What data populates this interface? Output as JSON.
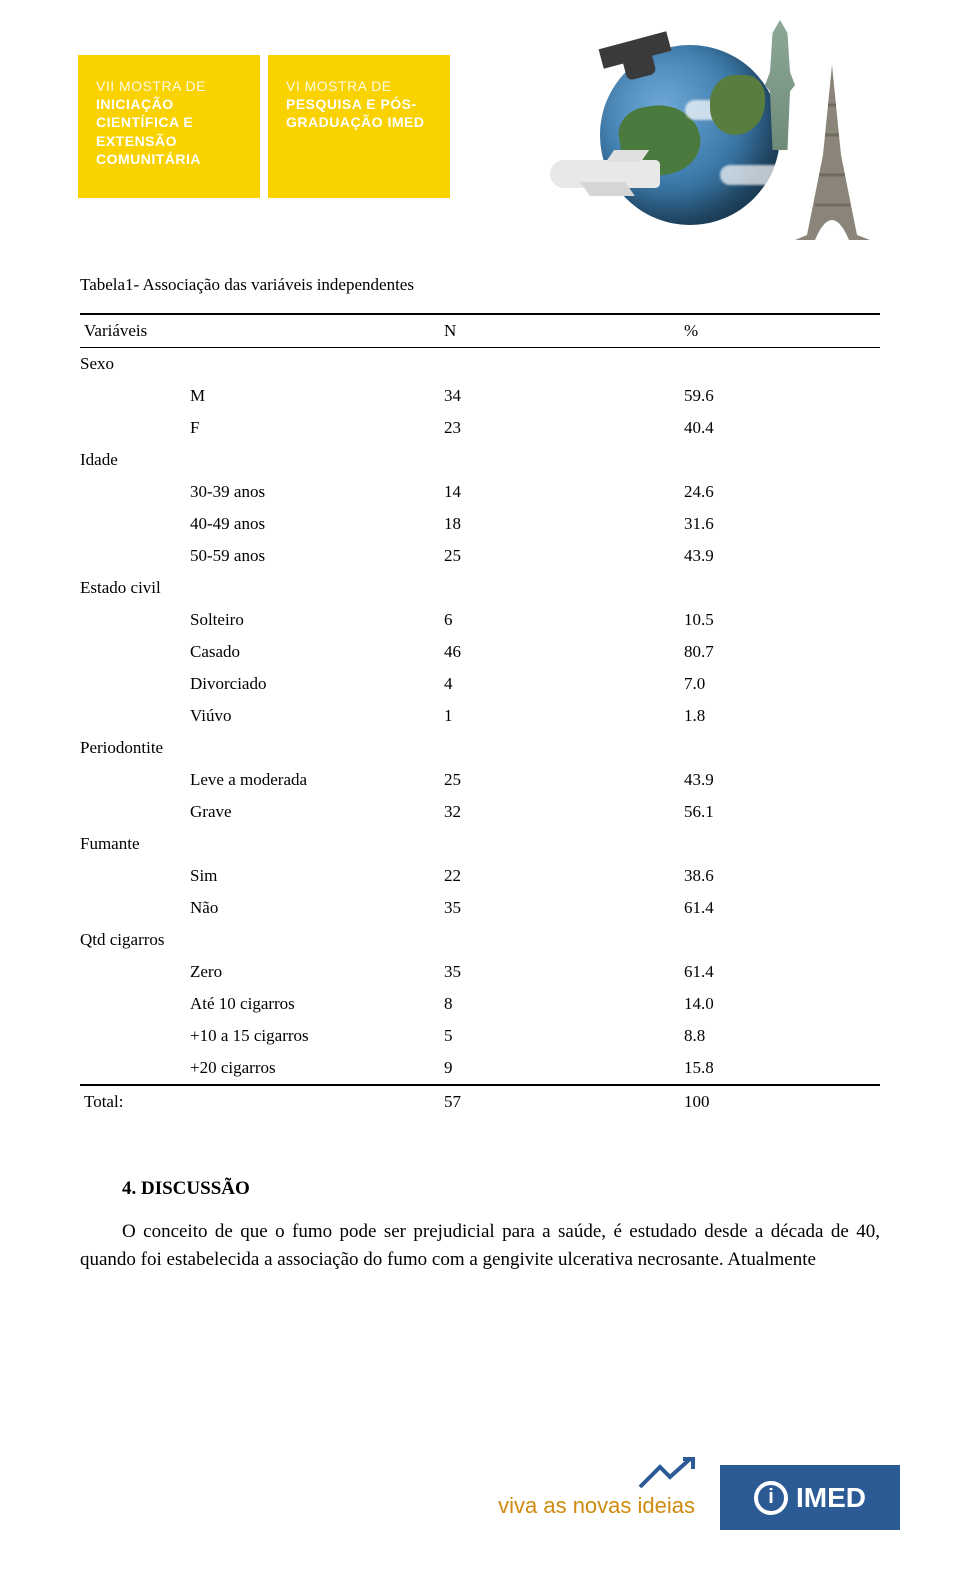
{
  "header": {
    "block1_small": "VII MOSTRA DE",
    "block1_big": "INICIAÇÃO CIENTÍFICA E EXTENSÃO COMUNITÁRIA",
    "block2_small": "VI MOSTRA DE",
    "block2_big": "PESQUISA E PÓS-GRADUAÇÃO IMED",
    "banner_bg": "#f9d200"
  },
  "table": {
    "caption": "Tabela1- Associação das variáveis independentes",
    "header_col1": "Variáveis",
    "header_col2": "N",
    "header_col3": "%",
    "sections": [
      {
        "name": "Sexo",
        "rows": [
          {
            "label": "M",
            "n": "34",
            "p": "59.6"
          },
          {
            "label": "F",
            "n": "23",
            "p": "40.4"
          }
        ]
      },
      {
        "name": "Idade",
        "rows": [
          {
            "label": "30-39 anos",
            "n": "14",
            "p": "24.6"
          },
          {
            "label": "40-49 anos",
            "n": "18",
            "p": "31.6"
          },
          {
            "label": "50-59 anos",
            "n": "25",
            "p": "43.9"
          }
        ]
      },
      {
        "name": "Estado civil",
        "rows": [
          {
            "label": "Solteiro",
            "n": "6",
            "p": "10.5"
          },
          {
            "label": "Casado",
            "n": "46",
            "p": "80.7"
          },
          {
            "label": "Divorciado",
            "n": "4",
            "p": "7.0"
          },
          {
            "label": "Viúvo",
            "n": "1",
            "p": "1.8"
          }
        ]
      },
      {
        "name": "Periodontite",
        "rows": [
          {
            "label": "Leve a moderada",
            "n": "25",
            "p": "43.9"
          },
          {
            "label": "Grave",
            "n": "32",
            "p": "56.1"
          }
        ]
      },
      {
        "name": "Fumante",
        "rows": [
          {
            "label": "Sim",
            "n": "22",
            "p": "38.6"
          },
          {
            "label": "Não",
            "n": "35",
            "p": "61.4"
          }
        ]
      },
      {
        "name": "Qtd cigarros",
        "rows": [
          {
            "label": "Zero",
            "n": "35",
            "p": "61.4"
          },
          {
            "label": "Até 10 cigarros",
            "n": "8",
            "p": "14.0"
          },
          {
            "label": "+10 a 15 cigarros",
            "n": "5",
            "p": "8.8"
          },
          {
            "label": "+20 cigarros",
            "n": "9",
            "p": "15.8"
          }
        ]
      }
    ],
    "total_label": "Total:",
    "total_n": "57",
    "total_p": "100"
  },
  "discussion": {
    "heading": "4.  DISCUSSÃO",
    "body": "O conceito de que o fumo pode ser prejudicial para a saúde, é estudado desde a década de 40, quando foi estabelecida a associação do fumo com a gengivite ulcerativa necrosante. Atualmente"
  },
  "footer": {
    "slogan": "viva as novas ideias",
    "logo_text": "IMED",
    "logo_bg": "#2b5a95"
  }
}
